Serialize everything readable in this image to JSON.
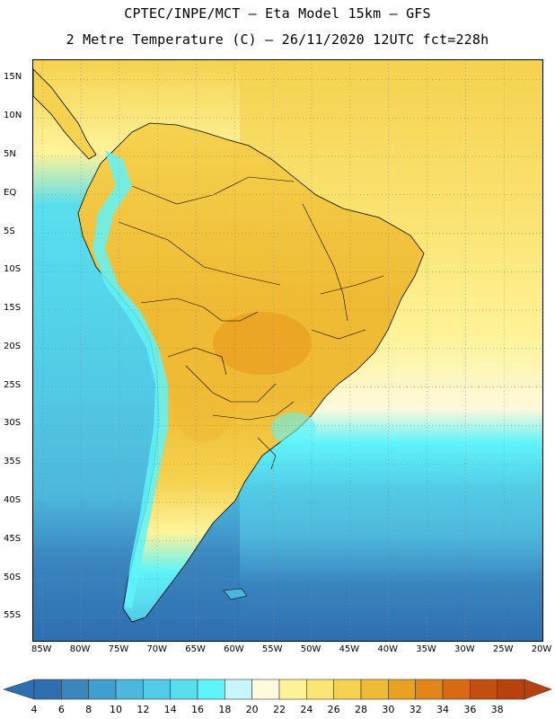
{
  "title_line1": "CPTEC/INPE/MCT –  Eta Model 15km – GFS",
  "title_line2": "2 Metre Temperature (C) – 26/11/2020 12UTC fct=228h",
  "map": {
    "lat_labels": [
      "15N",
      "10N",
      "5N",
      "EQ",
      "5S",
      "10S",
      "15S",
      "20S",
      "25S",
      "30S",
      "35S",
      "40S",
      "45S",
      "50S",
      "55S"
    ],
    "lat_values": [
      15,
      10,
      5,
      0,
      -5,
      -10,
      -15,
      -20,
      -25,
      -30,
      -35,
      -40,
      -45,
      -50,
      -55
    ],
    "lon_labels": [
      "85W",
      "80W",
      "75W",
      "70W",
      "65W",
      "60W",
      "55W",
      "50W",
      "45W",
      "40W",
      "35W",
      "30W",
      "25W",
      "20W"
    ],
    "lon_values": [
      -85,
      -80,
      -75,
      -70,
      -65,
      -60,
      -55,
      -50,
      -45,
      -40,
      -35,
      -30,
      -25,
      -20
    ],
    "lat_range": [
      -58,
      17.5
    ],
    "lon_range": [
      -86.2,
      -20.0
    ]
  },
  "colorbar": {
    "labels": [
      "4",
      "6",
      "8",
      "10",
      "12",
      "14",
      "16",
      "18",
      "20",
      "22",
      "24",
      "26",
      "28",
      "30",
      "32",
      "34",
      "36",
      "38"
    ],
    "colors": [
      "#2e6fb0",
      "#3a86bf",
      "#3f9fd0",
      "#4db7db",
      "#52cbe6",
      "#58dfee",
      "#5ff3fa",
      "#c8f5fb",
      "#fff9dd",
      "#fff39a",
      "#fbe576",
      "#f5d24f",
      "#efbb34",
      "#e9a121",
      "#e2861a",
      "#d86a14",
      "#c44e10",
      "#b7420d"
    ]
  }
}
